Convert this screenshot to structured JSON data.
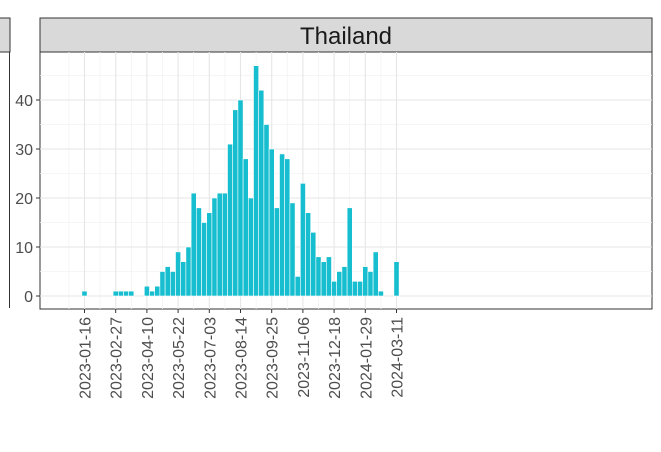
{
  "chart_data": {
    "type": "bar",
    "facet_label": "Thailand",
    "title": "",
    "xlabel": "",
    "ylabel": "",
    "x_ticks": [
      "2023-01-16",
      "2023-02-27",
      "2023-04-10",
      "2023-05-22",
      "2023-07-03",
      "2023-08-14",
      "2023-09-25",
      "2023-11-06",
      "2023-12-18",
      "2024-01-29",
      "2024-03-11"
    ],
    "y_ticks": [
      0,
      10,
      20,
      30,
      40
    ],
    "ylim": [
      0,
      48
    ],
    "grid": true,
    "bar_color": "#17BECF",
    "categories": [
      "2023-01-16",
      "2023-01-23",
      "2023-01-30",
      "2023-02-06",
      "2023-02-13",
      "2023-02-20",
      "2023-02-27",
      "2023-03-06",
      "2023-03-13",
      "2023-03-20",
      "2023-03-27",
      "2023-04-03",
      "2023-04-10",
      "2023-04-17",
      "2023-04-24",
      "2023-05-01",
      "2023-05-08",
      "2023-05-15",
      "2023-05-22",
      "2023-05-29",
      "2023-06-05",
      "2023-06-12",
      "2023-06-19",
      "2023-06-26",
      "2023-07-03",
      "2023-07-10",
      "2023-07-17",
      "2023-07-24",
      "2023-07-31",
      "2023-08-07",
      "2023-08-14",
      "2023-08-21",
      "2023-08-28",
      "2023-09-04",
      "2023-09-11",
      "2023-09-18",
      "2023-09-25",
      "2023-10-02",
      "2023-10-09",
      "2023-10-16",
      "2023-10-23",
      "2023-10-30",
      "2023-11-06",
      "2023-11-13",
      "2023-11-20",
      "2023-11-27",
      "2023-12-04",
      "2023-12-11",
      "2023-12-18",
      "2023-12-25",
      "2024-01-01",
      "2024-01-08",
      "2024-01-15",
      "2024-01-22",
      "2024-01-29",
      "2024-02-05",
      "2024-02-12",
      "2024-02-19",
      "2024-02-26",
      "2024-03-04",
      "2024-03-11"
    ],
    "values": [
      1,
      0,
      0,
      0,
      0,
      0,
      1,
      1,
      1,
      1,
      0,
      0,
      2,
      1,
      2,
      5,
      6,
      5,
      9,
      7,
      10,
      21,
      18,
      15,
      17,
      20,
      21,
      21,
      31,
      38,
      40,
      28,
      20,
      47,
      42,
      35,
      30,
      18,
      29,
      28,
      19,
      4,
      23,
      17,
      13,
      8,
      7,
      8,
      3,
      5,
      6,
      18,
      3,
      3,
      6,
      5,
      9,
      1,
      0,
      0,
      7
    ]
  }
}
